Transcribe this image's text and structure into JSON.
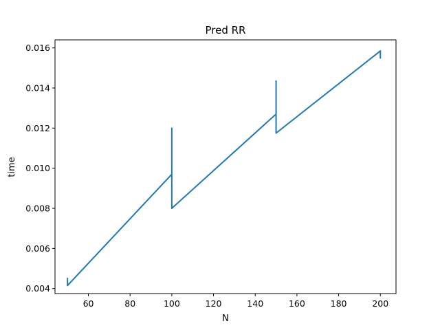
{
  "chart_data": {
    "type": "line",
    "title": "Pred RR",
    "xlabel": "N",
    "ylabel": "time",
    "xlim": [
      44,
      207.5
    ],
    "ylim": [
      0.00375,
      0.0164
    ],
    "xticks": [
      60,
      80,
      100,
      120,
      140,
      160,
      180,
      200
    ],
    "yticks": [
      0.004,
      0.006,
      0.008,
      0.01,
      0.012,
      0.014,
      0.016
    ],
    "xtick_labels": [
      "60",
      "80",
      "100",
      "120",
      "140",
      "160",
      "180",
      "200"
    ],
    "ytick_labels": [
      "0.004",
      "0.006",
      "0.008",
      "0.010",
      "0.012",
      "0.014",
      "0.016"
    ],
    "grid": false,
    "series": [
      {
        "color": "#1f77b4",
        "points": [
          [
            50,
            0.0045
          ],
          [
            50,
            0.00415
          ],
          [
            100,
            0.0097
          ],
          [
            100,
            0.012
          ],
          [
            100,
            0.008
          ],
          [
            150,
            0.0127
          ],
          [
            150,
            0.01435
          ],
          [
            150,
            0.01175
          ],
          [
            200,
            0.01585
          ],
          [
            200,
            0.0155
          ]
        ]
      }
    ]
  }
}
